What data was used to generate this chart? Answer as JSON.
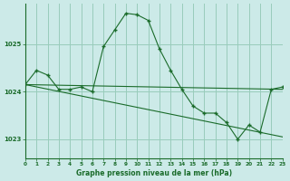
{
  "title": "Graphe pression niveau de la mer (hPa)",
  "bg_color": "#cceae8",
  "grid_color": "#99ccbb",
  "line_color": "#1a6b2a",
  "xlim": [
    0,
    23
  ],
  "ylim": [
    1022.6,
    1025.85
  ],
  "yticks": [
    1023,
    1024,
    1025
  ],
  "xticks": [
    0,
    1,
    2,
    3,
    4,
    5,
    6,
    7,
    8,
    9,
    10,
    11,
    12,
    13,
    14,
    15,
    16,
    17,
    18,
    19,
    20,
    21,
    22,
    23
  ],
  "series1_x": [
    0,
    1,
    2,
    3,
    4,
    5,
    6,
    7,
    8,
    9,
    10,
    11,
    12,
    13,
    14,
    15,
    16,
    17,
    18,
    19,
    20,
    21,
    22,
    23
  ],
  "series1_y": [
    1024.15,
    1024.45,
    1024.35,
    1024.05,
    1024.05,
    1024.1,
    1024.0,
    1024.95,
    1025.3,
    1025.65,
    1025.62,
    1025.5,
    1024.9,
    1024.45,
    1024.05,
    1023.7,
    1023.55,
    1023.55,
    1023.35,
    1023.0,
    1023.3,
    1023.15,
    1024.05,
    1024.1
  ],
  "series2_x": [
    0,
    23
  ],
  "series2_y": [
    1024.15,
    1024.05
  ],
  "series3_x": [
    0,
    23
  ],
  "series3_y": [
    1024.15,
    1023.05
  ]
}
